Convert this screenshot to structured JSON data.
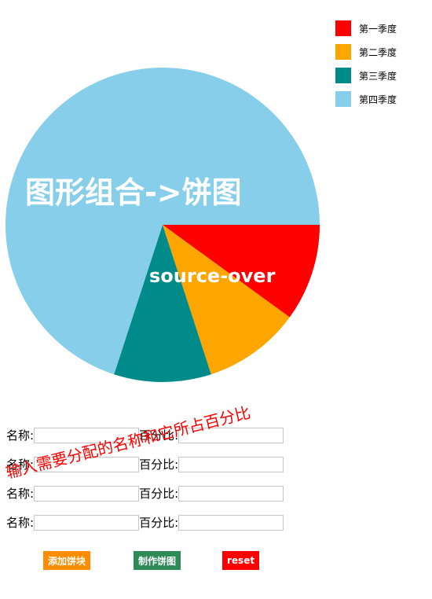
{
  "chart_data": {
    "type": "pie",
    "title": "图形组合->饼图",
    "subtitle": "source-over",
    "categories": [
      "第一季度",
      "第二季度",
      "第三季度",
      "第四季度"
    ],
    "values": [
      10,
      10,
      10,
      70
    ],
    "colors": [
      "#ff0000",
      "#ffa500",
      "#008b8b",
      "#87ceeb"
    ],
    "legend_position": "top-right"
  },
  "form": {
    "rows": [
      {
        "name_label": "名称:",
        "percent_label": "百分比:",
        "name_value": "",
        "percent_value": ""
      },
      {
        "name_label": "名称:",
        "percent_label": "百分比:",
        "name_value": "",
        "percent_value": ""
      },
      {
        "name_label": "名称:",
        "percent_label": "百分比:",
        "name_value": "",
        "percent_value": ""
      },
      {
        "name_label": "名称:",
        "percent_label": "百分比:",
        "name_value": "",
        "percent_value": ""
      }
    ],
    "annotation": "输入需要分配的名称和它所占百分比"
  },
  "buttons": {
    "add_label": "添加饼块",
    "make_label": "制作饼图",
    "reset_label": "reset"
  }
}
